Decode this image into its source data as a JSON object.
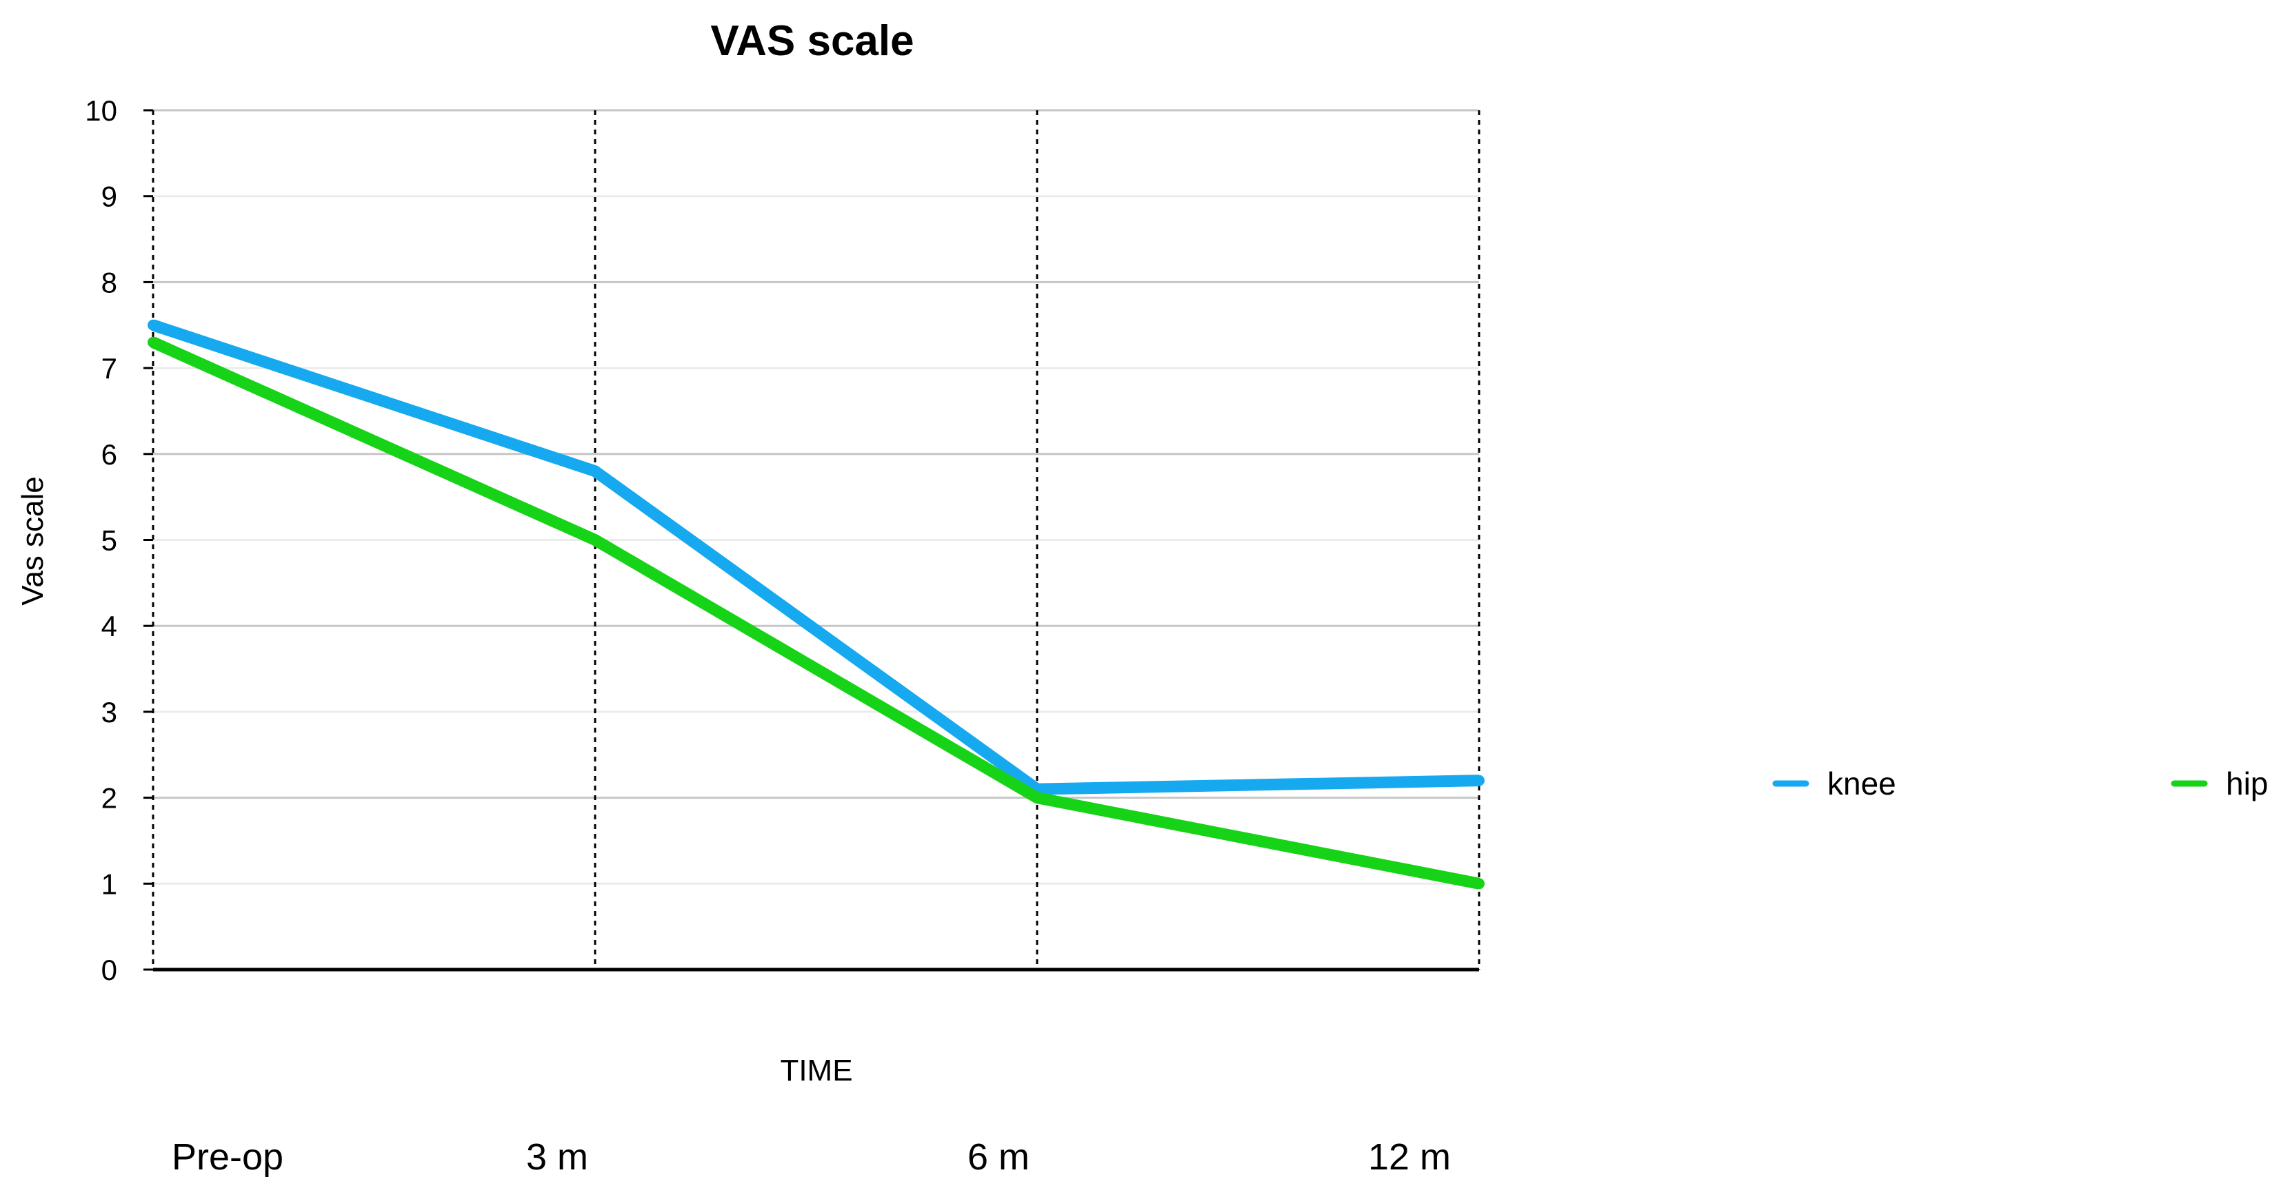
{
  "chart_data": {
    "type": "line",
    "title": "VAS scale",
    "xlabel": "TIME",
    "ylabel": "Vas scale",
    "categories": [
      "Pre-op",
      "3 m",
      "6 m",
      "12 m"
    ],
    "ylim": [
      0,
      10
    ],
    "yticks": [
      "0",
      "1",
      "2",
      "3",
      "4",
      "5",
      "6",
      "7",
      "8",
      "9",
      "10"
    ],
    "grid": true,
    "legend_position": "right",
    "series": [
      {
        "name": "knee",
        "color": "#16A9F0",
        "values": [
          7.5,
          5.8,
          2.1,
          2.2
        ]
      },
      {
        "name": "hip",
        "color": "#17D317",
        "values": [
          7.3,
          5.0,
          2.0,
          1.0
        ]
      }
    ]
  }
}
